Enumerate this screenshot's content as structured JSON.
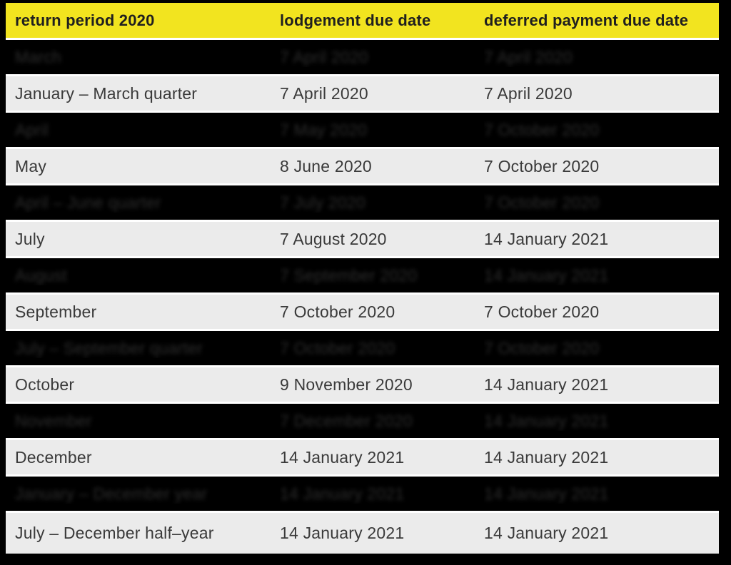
{
  "colors": {
    "canvas_background": "#000000",
    "header_background": "#F2E41F",
    "header_text": "#1F1F1F",
    "light_row_background": "#EBEBEB",
    "light_row_text": "#3A3A3A",
    "dark_row_background": "#000000",
    "dark_row_blurred_text": "#2D2D2D",
    "row_separator": "#FFFFFF"
  },
  "table": {
    "columns": [
      "return period 2020",
      "lodgement due date",
      "deferred payment due date"
    ],
    "rows": [
      {
        "period": "March",
        "lodgement_due": "7 April 2020",
        "deferred_due": "7 April 2020",
        "redacted": true
      },
      {
        "period": "January – March quarter",
        "lodgement_due": "7 April 2020",
        "deferred_due": "7 April 2020",
        "redacted": false
      },
      {
        "period": "April",
        "lodgement_due": "7 May 2020",
        "deferred_due": "7 October 2020",
        "redacted": true
      },
      {
        "period": "May",
        "lodgement_due": "8 June 2020",
        "deferred_due": "7 October 2020",
        "redacted": false
      },
      {
        "period": "April – June quarter",
        "lodgement_due": "7 July 2020",
        "deferred_due": "7 October 2020",
        "redacted": true
      },
      {
        "period": "July",
        "lodgement_due": "7 August 2020",
        "deferred_due": "14 January 2021",
        "redacted": false
      },
      {
        "period": "August",
        "lodgement_due": "7 September 2020",
        "deferred_due": "14 January 2021",
        "redacted": true
      },
      {
        "period": "September",
        "lodgement_due": "7 October 2020",
        "deferred_due": "7 October 2020",
        "redacted": false
      },
      {
        "period": "July – September quarter",
        "lodgement_due": "7 October 2020",
        "deferred_due": "7 October 2020",
        "redacted": true
      },
      {
        "period": "October",
        "lodgement_due": "9 November 2020",
        "deferred_due": "14 January 2021",
        "redacted": false
      },
      {
        "period": "November",
        "lodgement_due": "7 December 2020",
        "deferred_due": "14 January 2021",
        "redacted": true
      },
      {
        "period": "December",
        "lodgement_due": "14 January 2021",
        "deferred_due": "14 January 2021",
        "redacted": false
      },
      {
        "period": "January – December year",
        "lodgement_due": "14 January 2021",
        "deferred_due": "14 January 2021",
        "redacted": true
      },
      {
        "period": "July – December half–year",
        "lodgement_due": "14 January 2021",
        "deferred_due": "14 January 2021",
        "redacted": false
      }
    ]
  },
  "chart_data": {
    "type": "table",
    "title": "return period 2020",
    "columns": [
      "return period 2020",
      "lodgement due date",
      "deferred payment due date"
    ],
    "rows": [
      [
        "March",
        "7 April 2020",
        "7 April 2020"
      ],
      [
        "January – March quarter",
        "7 April 2020",
        "7 April 2020"
      ],
      [
        "April",
        "7 May 2020",
        "7 October 2020"
      ],
      [
        "May",
        "8 June 2020",
        "7 October 2020"
      ],
      [
        "April – June quarter",
        "7 July 2020",
        "7 October 2020"
      ],
      [
        "July",
        "7 August 2020",
        "14 January 2021"
      ],
      [
        "August",
        "7 September 2020",
        "14 January 2021"
      ],
      [
        "September",
        "7 October 2020",
        "7 October 2020"
      ],
      [
        "July – September quarter",
        "7 October 2020",
        "7 October 2020"
      ],
      [
        "October",
        "9 November 2020",
        "14 January 2021"
      ],
      [
        "November",
        "7 December 2020",
        "14 January 2021"
      ],
      [
        "December",
        "14 January 2021",
        "14 January 2021"
      ],
      [
        "January – December year",
        "14 January 2021",
        "14 January 2021"
      ],
      [
        "July – December half–year",
        "14 January 2021",
        "14 January 2021"
      ]
    ],
    "redacted_row_indices": [
      0,
      2,
      4,
      6,
      8,
      10,
      12
    ],
    "notes": "Rows with black backgrounds show heavily blurred (illegible) dark text; their values are best-effort estimates read from blurred pixels."
  }
}
